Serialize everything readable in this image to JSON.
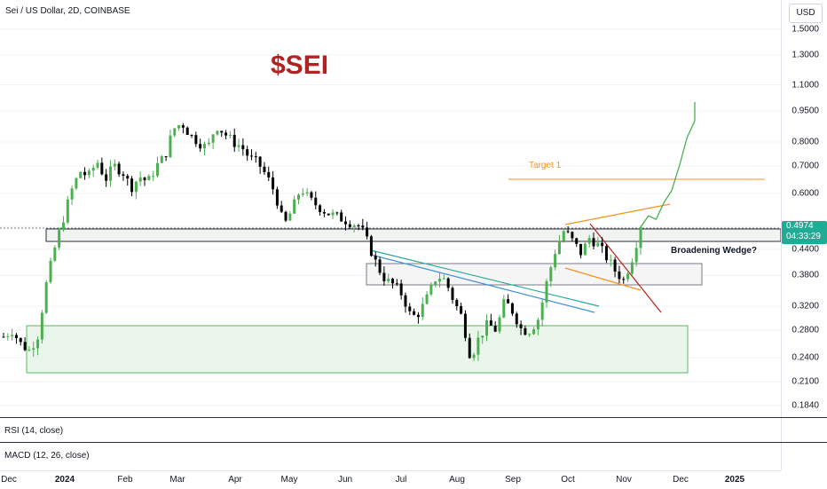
{
  "header": {
    "symbol_line": "Sei / US Dollar, 2D, COINBASE"
  },
  "chart_title": "$SEI",
  "currency": "USD",
  "last_price": "0.4974",
  "countdown": "04:33:29",
  "annotations": {
    "target": "Target 1",
    "pattern": "Broadening Wedge?"
  },
  "indicators": {
    "rsi_label": "RSI (14, close)",
    "macd_label": "MACD (12, 26, close)"
  },
  "colors": {
    "up": "#26a69a",
    "candle_up": "#4caf50",
    "candle_down": "#000000",
    "title": "#b22222",
    "target_line": "#f7931a",
    "projection": "#4caf50",
    "last_price": "#22ab94"
  },
  "chart_data": {
    "type": "candlestick",
    "title": "$SEI",
    "y_scale": "log",
    "ylim": [
      0.184,
      1.6
    ],
    "y_ticks": [
      "1.5000",
      "1.3000",
      "1.1000",
      "0.9500",
      "0.8000",
      "0.7000",
      "0.6000",
      "0.5000",
      "0.4400",
      "0.3800",
      "0.3200",
      "0.2800",
      "0.2400",
      "0.2100",
      "0.1840"
    ],
    "x_ticks": [
      "Dec",
      "2024",
      "Feb",
      "Mar",
      "Apr",
      "May",
      "Jun",
      "Jul",
      "Aug",
      "Sep",
      "Oct",
      "Nov",
      "Dec",
      "2025"
    ],
    "price_path": [
      0.27,
      0.28,
      0.26,
      0.25,
      0.27,
      0.36,
      0.44,
      0.52,
      0.61,
      0.68,
      0.66,
      0.72,
      0.65,
      0.7,
      0.68,
      0.62,
      0.66,
      0.64,
      0.7,
      0.74,
      0.86,
      0.89,
      0.83,
      0.8,
      0.77,
      0.88,
      0.84,
      0.8,
      0.78,
      0.73,
      0.71,
      0.66,
      0.6,
      0.5,
      0.55,
      0.62,
      0.58,
      0.56,
      0.54,
      0.53,
      0.52,
      0.51,
      0.5,
      0.45,
      0.4,
      0.37,
      0.36,
      0.34,
      0.3,
      0.31,
      0.34,
      0.38,
      0.37,
      0.33,
      0.3,
      0.24,
      0.27,
      0.29,
      0.28,
      0.33,
      0.31,
      0.28,
      0.28,
      0.3,
      0.37,
      0.44,
      0.49,
      0.46,
      0.43,
      0.47,
      0.45,
      0.42,
      0.39,
      0.37,
      0.42,
      0.4974
    ],
    "levels": {
      "target": 0.645,
      "resistance_zone": [
        0.46,
        0.505
      ],
      "mid_zone": [
        0.365,
        0.41
      ],
      "support_zone": [
        0.22,
        0.29
      ]
    },
    "projection": [
      0.4974,
      0.53,
      0.52,
      0.57,
      0.61,
      0.7,
      0.82,
      0.9
    ],
    "annotations": [
      "Target 1",
      "Broadening Wedge?"
    ],
    "last_price": 0.4974
  }
}
